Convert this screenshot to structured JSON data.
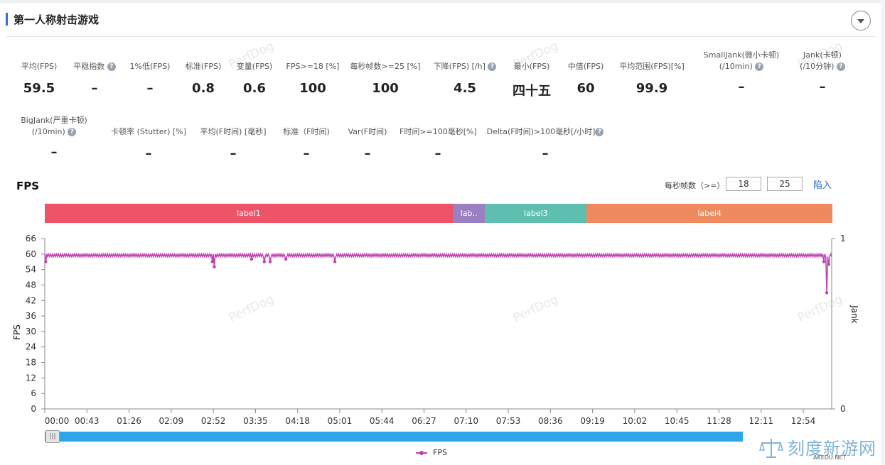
{
  "header": {
    "title": "第一人称射击游戏"
  },
  "watermark": "PerfDog",
  "metrics_row1": [
    {
      "label": "平均(FPS)",
      "value": "59.5",
      "help": false
    },
    {
      "label": "平稳指数",
      "value": "–",
      "help": true
    },
    {
      "label": "1%低(FPS)",
      "value": "–",
      "help": false
    },
    {
      "label": "标准(FPS)",
      "value": "0.8",
      "help": false
    },
    {
      "label": "变量(FPS)",
      "value": "0.6",
      "help": false
    },
    {
      "label": "FPS>=18 [%]",
      "value": "100",
      "help": false
    },
    {
      "label": "每秒帧数>=25 [%]",
      "value": "100",
      "help": false
    },
    {
      "label": "下降(FPS) [/h]",
      "value": "4.5",
      "help": true
    },
    {
      "label": "最小(FPS)",
      "value": "四十五",
      "help": false
    },
    {
      "label": "中值(FPS)",
      "value": "60",
      "help": false
    },
    {
      "label": "平均范围(FPS)[%]",
      "value": "99.9",
      "help": false
    },
    {
      "label": "SmallJank(微小卡顿)",
      "label2": "(/10min)",
      "value": "–",
      "help": true
    },
    {
      "label": "Jank(卡顿)",
      "label2": "(/10分钟)",
      "value": "–",
      "help": true
    }
  ],
  "metrics_row2": [
    {
      "label": "BigJank(严重卡顿)",
      "label2": "(/10min)",
      "value": "–",
      "help": true
    },
    {
      "label": "卡顿率 (Stutter) [%]",
      "value": "–",
      "help": false
    },
    {
      "label": "平均(F时间) [毫秒]",
      "value": "–",
      "help": false
    },
    {
      "label": "标准（F时间)",
      "value": "–",
      "help": false
    },
    {
      "label": "Var(F时间)",
      "value": "–",
      "help": false
    },
    {
      "label": "F时间>=100毫秒[%]",
      "value": "–",
      "help": false
    },
    {
      "label": "Delta(F时间)>100毫秒[/小时]",
      "value": "–",
      "help": true
    }
  ],
  "fps_section": {
    "title": "FPS",
    "threshold_label": "每秒帧数（>=）",
    "threshold_1": "18",
    "threshold_2": "25",
    "apply_button": "陷入"
  },
  "label_bar": [
    {
      "name": "label1",
      "start": 0,
      "end": 0.518,
      "color": "#ee5468"
    },
    {
      "name": "lab..",
      "start": 0.518,
      "end": 0.559,
      "color": "#9b7fc2"
    },
    {
      "name": "label3",
      "start": 0.559,
      "end": 0.688,
      "color": "#5ebfb1"
    },
    {
      "name": "label4",
      "start": 0.688,
      "end": 1.0,
      "color": "#ee8a5e"
    }
  ],
  "chart_data": {
    "type": "line",
    "xlabel": "",
    "ylabel": "FPS",
    "y2label": "Jank",
    "ylim": [
      0,
      66
    ],
    "yticks": [
      0,
      6,
      12,
      18,
      24,
      30,
      36,
      42,
      48,
      54,
      60,
      66
    ],
    "y2ticks": [
      "0",
      "1"
    ],
    "x_tick_labels": [
      "00:00",
      "00:43",
      "01:26",
      "02:09",
      "02:52",
      "03:35",
      "04:18",
      "05:01",
      "05:44",
      "06:27",
      "07:10",
      "07:53",
      "08:36",
      "09:19",
      "10:02",
      "10:45",
      "11:28",
      "12:11",
      "12:54"
    ],
    "x_range_seconds": [
      0,
      803
    ],
    "baseline": 59.5,
    "series": [
      {
        "name": "FPS",
        "color": "#c040b0",
        "dips": [
          {
            "t": 1,
            "fps": 57
          },
          {
            "t": 171,
            "fps": 57
          },
          {
            "t": 173,
            "fps": 55
          },
          {
            "t": 211,
            "fps": 58
          },
          {
            "t": 224,
            "fps": 57
          },
          {
            "t": 230,
            "fps": 57
          },
          {
            "t": 246,
            "fps": 58
          },
          {
            "t": 296,
            "fps": 57
          },
          {
            "t": 795,
            "fps": 57
          },
          {
            "t": 798,
            "fps": 45
          },
          {
            "t": 800,
            "fps": 56
          }
        ]
      }
    ],
    "legend": "bottom-center",
    "grid": false
  },
  "site_logo": {
    "name": "刻度新游网",
    "domain": "AKEDU.NET"
  }
}
